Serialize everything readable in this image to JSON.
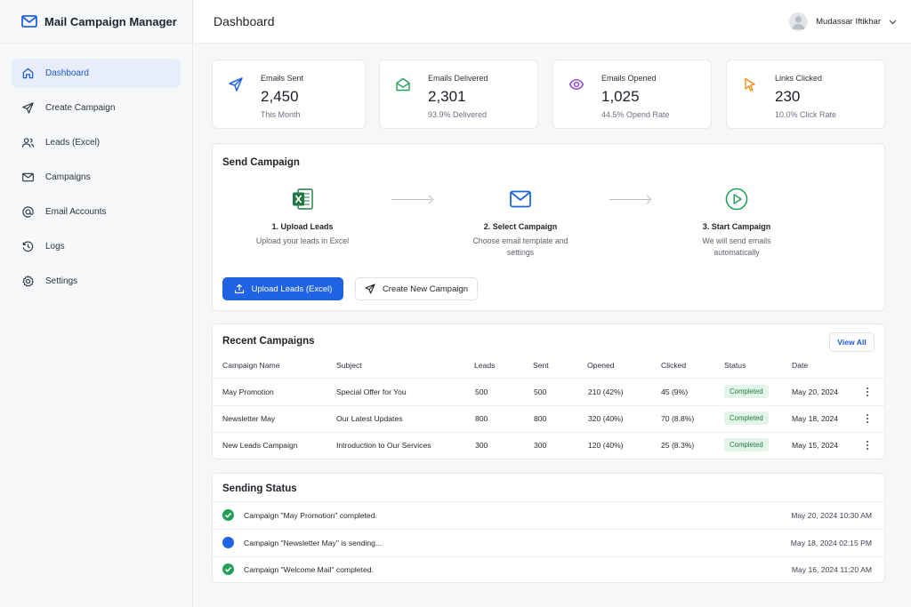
{
  "app": {
    "title": "Mail Campaign Manager"
  },
  "sidebar": {
    "items": [
      {
        "label": "Dashboard",
        "icon": "home-icon",
        "active": true
      },
      {
        "label": "Create Campaign",
        "icon": "send-icon"
      },
      {
        "label": "Leads (Excel)",
        "icon": "users-icon"
      },
      {
        "label": "Campaigns",
        "icon": "mail-icon"
      },
      {
        "label": "Email Accounts",
        "icon": "at-icon"
      },
      {
        "label": "Logs",
        "icon": "history-icon"
      },
      {
        "label": "Settings",
        "icon": "gear-icon"
      }
    ]
  },
  "header": {
    "title": "Dashboard",
    "user_name": "Mudassar Iftikhar"
  },
  "stats": [
    {
      "label": "Emails Sent",
      "value": "2,450",
      "sub": "This Month",
      "icon": "send-icon",
      "color": "#1f63e3"
    },
    {
      "label": "Emails Delivered",
      "value": "2,301",
      "sub": "93.9% Delivered",
      "icon": "mail-open-icon",
      "color": "#22a05a"
    },
    {
      "label": "Emails Opened",
      "value": "1,025",
      "sub": "44.5% Opend Rate",
      "icon": "eye-icon",
      "color": "#8b3fd9"
    },
    {
      "label": "Links Clicked",
      "value": "230",
      "sub": "10.0% Click Rate",
      "icon": "cursor-icon",
      "color": "#f08c1a"
    }
  ],
  "send_campaign": {
    "title": "Send Campaign",
    "steps": [
      {
        "title": "1. Upload Leads",
        "desc": "Upload your leads in Excel",
        "icon": "excel-icon"
      },
      {
        "title": "2. Select Campaign",
        "desc": "Choose email template and settings",
        "icon": "mail-icon"
      },
      {
        "title": "3. Start Campaign",
        "desc": "We will send emails automatically",
        "icon": "play-icon"
      }
    ],
    "upload_button": "Upload Leads (Excel)",
    "create_button": "Create New Campaign"
  },
  "recent": {
    "title": "Recent Campaigns",
    "view_all": "View All",
    "columns": [
      "Campaign Name",
      "Subject",
      "Leads",
      "Sent",
      "Opened",
      "Clicked",
      "Status",
      "Date"
    ],
    "rows": [
      {
        "name": "May Promotion",
        "subject": "Special Offer for You",
        "leads": "500",
        "sent": "500",
        "opened": "210 (42%)",
        "clicked": "45 (9%)",
        "status": "Completed",
        "date": "May 20, 2024"
      },
      {
        "name": "Newsletter May",
        "subject": "Our Latest Updates",
        "leads": "800",
        "sent": "800",
        "opened": "320 (40%)",
        "clicked": "70 (8.8%)",
        "status": "Completed",
        "date": "May 18, 2024"
      },
      {
        "name": "New Leads Campaign",
        "subject": "Introduction to Our Services",
        "leads": "300",
        "sent": "300",
        "opened": "120 (40%)",
        "clicked": "25 (8.3%)",
        "status": "Completed",
        "date": "May 15, 2024"
      }
    ]
  },
  "sending_status": {
    "title": "Sending Status",
    "items": [
      {
        "text": "Campaign \"May Promotion\" completed.",
        "time": "May 20, 2024 10:30 AM",
        "state": "done",
        "color": "#22a05a"
      },
      {
        "text": "Campaign \"Newsletter May\" is sending...",
        "time": "May 18, 2024 02:15 PM",
        "state": "sending",
        "color": "#1f63e3"
      },
      {
        "text": "Campaign \"Welcome Mail\" completed.",
        "time": "May 16, 2024 11:20 AM",
        "state": "done",
        "color": "#22a05a"
      }
    ]
  }
}
